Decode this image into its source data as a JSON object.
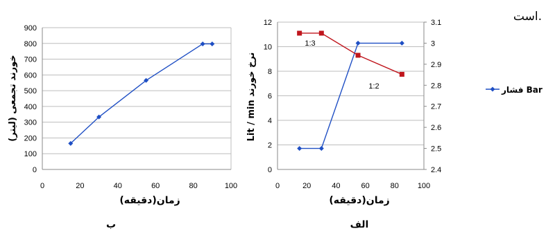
{
  "page_fragment": "است.",
  "chart_data": [
    {
      "type": "line",
      "panel_label": "ب",
      "xlabel": "زمان(دقیقه)",
      "ylabel": "خورند تجمعی (لیتر)",
      "xlim": [
        0,
        100
      ],
      "ylim": [
        0,
        900
      ],
      "x_ticks": [
        0,
        20,
        40,
        60,
        80,
        100
      ],
      "y_ticks": [
        0,
        100,
        200,
        300,
        400,
        500,
        600,
        700,
        800,
        900
      ],
      "grid": "horizontal",
      "series": [
        {
          "color": "#1f4fc4",
          "marker": "diamond",
          "x": [
            15,
            30,
            55,
            85,
            90
          ],
          "y": [
            165,
            333,
            565,
            797,
            797
          ]
        }
      ]
    },
    {
      "type": "line",
      "panel_label": "الف",
      "xlabel": "زمان(دقیقه)",
      "ylabel": "Lit / min  نرخ خورند",
      "y2label": "",
      "xlim": [
        0,
        100
      ],
      "ylim": [
        0,
        12
      ],
      "y2lim": [
        2.4,
        3.1
      ],
      "x_ticks": [
        0,
        20,
        40,
        60,
        80,
        100
      ],
      "y_ticks": [
        0,
        2,
        4,
        6,
        8,
        10,
        12
      ],
      "y2_ticks": [
        "2.4",
        "2.5",
        "2.6",
        "2.7",
        "2.8",
        "2.9",
        "3",
        "3.1"
      ],
      "grid": "horizontal",
      "legend": {
        "position": "right",
        "entries": [
          "فشار Bar"
        ]
      },
      "annotations": [
        "1:3",
        "1:2"
      ],
      "series": [
        {
          "name": "فشار Bar",
          "axis": "right",
          "color": "#1f4fc4",
          "marker": "diamond",
          "x": [
            15,
            30,
            55,
            85
          ],
          "y": [
            2.5,
            2.5,
            3.0,
            3.0
          ]
        },
        {
          "axis": "left",
          "color": "#c0161d",
          "marker": "square",
          "x": [
            15,
            30,
            55,
            85
          ],
          "y": [
            11.1,
            11.1,
            9.3,
            7.75
          ]
        }
      ]
    }
  ]
}
